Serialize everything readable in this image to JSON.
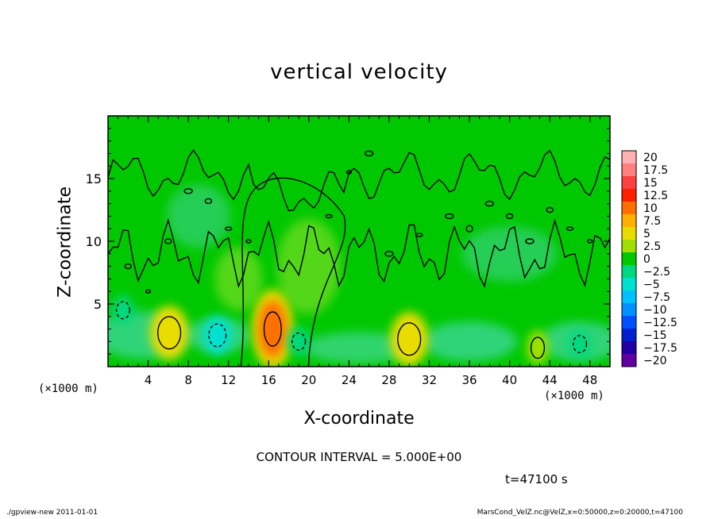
{
  "chart_data": {
    "type": "heatmap",
    "title": "vertical velocity",
    "xlabel": "X-coordinate",
    "ylabel": "Z-coordinate",
    "x_unit_label": "(×1000 m)",
    "x_ticks": [
      4,
      8,
      12,
      16,
      20,
      24,
      28,
      32,
      36,
      40,
      44,
      48
    ],
    "y_ticks": [
      5,
      10,
      15
    ],
    "xlim": [
      0,
      50
    ],
    "ylim": [
      0,
      20
    ],
    "colorbar": {
      "labels": [
        "20",
        "17.5",
        "15",
        "12.5",
        "10",
        "7.5",
        "5",
        "2.5",
        "0",
        "−2.5",
        "−5",
        "−7.5",
        "−10",
        "−12.5",
        "−15",
        "−17.5",
        "−20"
      ],
      "colors": [
        "#ffb0b0",
        "#ff8080",
        "#ff4040",
        "#ff2000",
        "#ff7000",
        "#ffb000",
        "#e8dc00",
        "#a0e000",
        "#00c800",
        "#00d880",
        "#00e0d0",
        "#00c0ff",
        "#0090ff",
        "#0050ff",
        "#0020d0",
        "#2000a0",
        "#6000a0"
      ]
    },
    "features": [
      {
        "kind": "updraft",
        "x": 6.1,
        "z": 2.7,
        "value": 5
      },
      {
        "kind": "updraft",
        "x": 16.4,
        "z": 3.0,
        "value": 10
      },
      {
        "kind": "updraft",
        "x": 30.0,
        "z": 2.2,
        "value": 5
      },
      {
        "kind": "updraft",
        "x": 42.8,
        "z": 1.5,
        "value": 2.5
      },
      {
        "kind": "downdraft",
        "x": 10.9,
        "z": 2.5,
        "value": -5
      },
      {
        "kind": "downdraft",
        "x": 19.0,
        "z": 2.0,
        "value": -2.5
      },
      {
        "kind": "downdraft",
        "x": 1.5,
        "z": 4.5,
        "value": -2.5
      },
      {
        "kind": "downdraft",
        "x": 47.0,
        "z": 1.8,
        "value": -2.5
      }
    ],
    "contour_interval_text": "CONTOUR INTERVAL = 5.000E+00",
    "time_text": "t=47100  s"
  },
  "footer": {
    "left": "./gpview-new   2011-01-01",
    "right": "MarsCond_VelZ.nc@VelZ,x=0:50000,z=0:20000,t=47100"
  }
}
